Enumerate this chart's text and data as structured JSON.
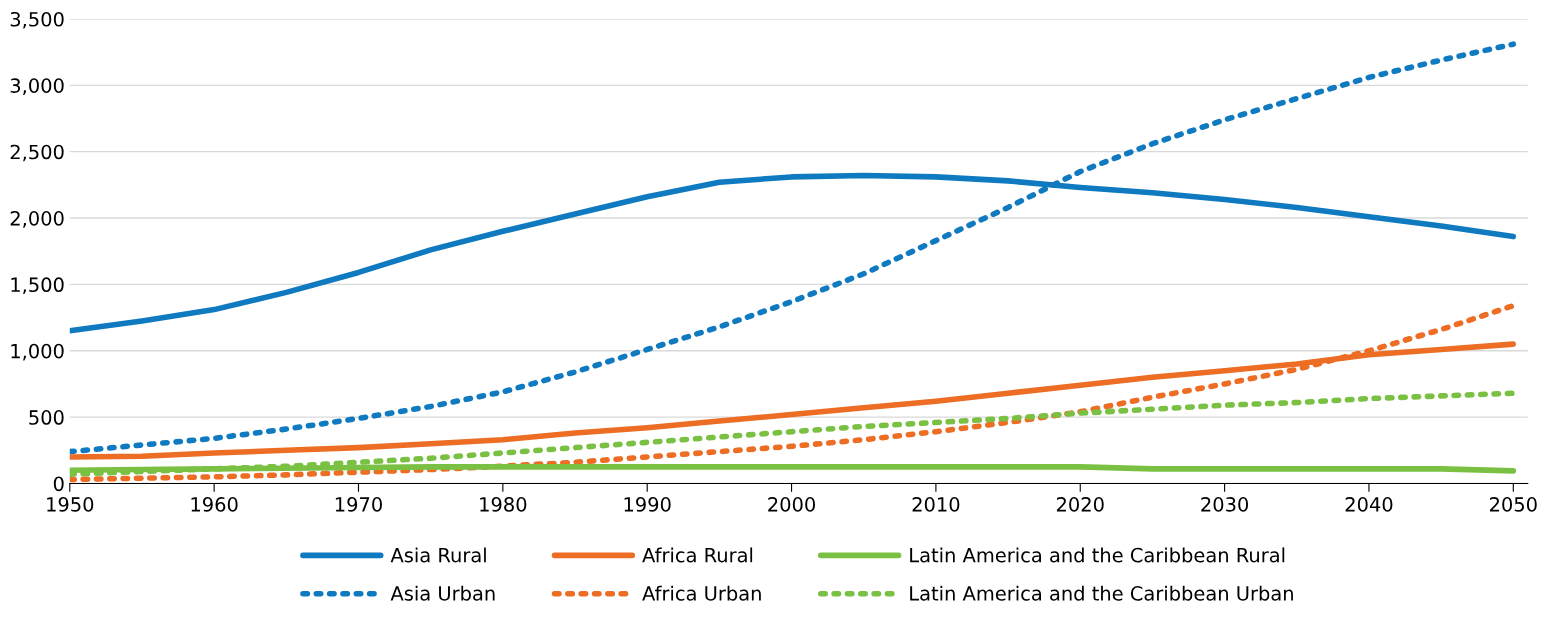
{
  "chart_data": {
    "type": "line",
    "x": [
      1950,
      1955,
      1960,
      1965,
      1970,
      1975,
      1980,
      1985,
      1990,
      1995,
      2000,
      2005,
      2010,
      2015,
      2020,
      2025,
      2030,
      2035,
      2040,
      2045,
      2050
    ],
    "series": [
      {
        "name": "Asia Rural",
        "color": "#0f7ac0",
        "line_style": "solid",
        "values": [
          1150,
          1225,
          1310,
          1440,
          1590,
          1760,
          1900,
          2030,
          2160,
          2270,
          2310,
          2320,
          2310,
          2280,
          2230,
          2190,
          2140,
          2080,
          2010,
          1940,
          1860
        ]
      },
      {
        "name": "Asia Urban",
        "color": "#0f7ac0",
        "line_style": "dotted",
        "values": [
          240,
          290,
          340,
          410,
          490,
          580,
          690,
          840,
          1010,
          1180,
          1370,
          1580,
          1830,
          2080,
          2350,
          2560,
          2740,
          2900,
          3060,
          3190,
          3310
        ]
      },
      {
        "name": "Africa Rural",
        "color": "#ec6d23",
        "line_style": "solid",
        "values": [
          200,
          205,
          230,
          250,
          270,
          300,
          330,
          380,
          420,
          470,
          520,
          570,
          620,
          680,
          740,
          800,
          850,
          900,
          970,
          1010,
          1050
        ]
      },
      {
        "name": "Africa Urban",
        "color": "#ec6d23",
        "line_style": "dotted",
        "values": [
          30,
          40,
          50,
          65,
          85,
          105,
          130,
          160,
          200,
          240,
          280,
          330,
          390,
          460,
          540,
          650,
          750,
          860,
          1000,
          1160,
          1340
        ]
      },
      {
        "name": "Latin America and the Caribbean Rural",
        "color": "#7ac143",
        "line_style": "solid",
        "values": [
          100,
          105,
          110,
          115,
          120,
          125,
          125,
          125,
          125,
          125,
          125,
          125,
          125,
          125,
          125,
          110,
          110,
          110,
          110,
          110,
          95
        ]
      },
      {
        "name": "Latin America and the Caribbean Urban",
        "color": "#7ac143",
        "line_style": "dotted",
        "values": [
          70,
          90,
          110,
          130,
          160,
          190,
          230,
          270,
          310,
          350,
          390,
          430,
          460,
          490,
          530,
          560,
          590,
          610,
          640,
          660,
          680
        ]
      }
    ],
    "xlim": [
      1950,
      2051
    ],
    "xticks": [
      1950,
      1960,
      1970,
      1980,
      1990,
      2000,
      2010,
      2020,
      2030,
      2040,
      2050
    ],
    "ylim": [
      0,
      3500
    ],
    "yticks": [
      {
        "value": 0,
        "label": "0"
      },
      {
        "value": 500,
        "label": "500"
      },
      {
        "value": 1000,
        "label": "1,000"
      },
      {
        "value": 1500,
        "label": "1,500"
      },
      {
        "value": 2000,
        "label": "2,000"
      },
      {
        "value": 2500,
        "label": "2,500"
      },
      {
        "value": 3000,
        "label": "3,000"
      },
      {
        "value": 3500,
        "label": "3,500"
      }
    ],
    "grid": "y",
    "legend": "bottom",
    "marker": "none"
  }
}
